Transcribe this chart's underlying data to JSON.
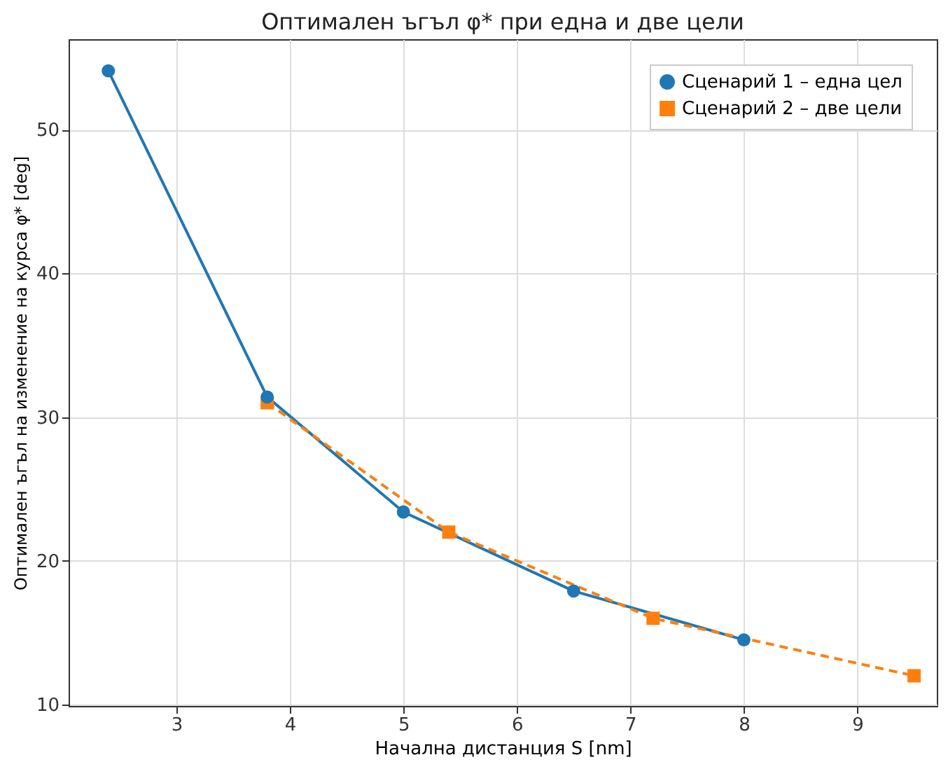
{
  "chart_data": {
    "type": "line",
    "title": "Оптимален ъгъл φ* при една и две цели",
    "xlabel": "Начална дистанция S [nm]",
    "ylabel": "Оптимален ъгъл на изменение на курса φ* [deg]",
    "xlim": [
      2.05,
      9.7
    ],
    "xticks": [
      3,
      4,
      5,
      6,
      7,
      8,
      9
    ],
    "ylim": [
      9.9,
      56.3
    ],
    "yticks": [
      10,
      20,
      30,
      40,
      50
    ],
    "grid": true,
    "legend": "top right",
    "series": [
      {
        "name": "Сценарий 1 – една цел",
        "color": "#1f77b4",
        "marker": "circle",
        "line_style": "solid",
        "x": [
          2.4,
          3.8,
          5,
          6.5,
          8
        ],
        "values": [
          54.1,
          31.4,
          23.4,
          17.9,
          14.5
        ]
      },
      {
        "name": "Сценарий 2 – две цели",
        "color": "#ff7f0e",
        "marker": "square",
        "line_style": "dashed",
        "x": [
          3.8,
          5.4,
          7.2,
          9.5
        ],
        "values": [
          31.0,
          22.0,
          16.0,
          12.0
        ]
      }
    ]
  }
}
